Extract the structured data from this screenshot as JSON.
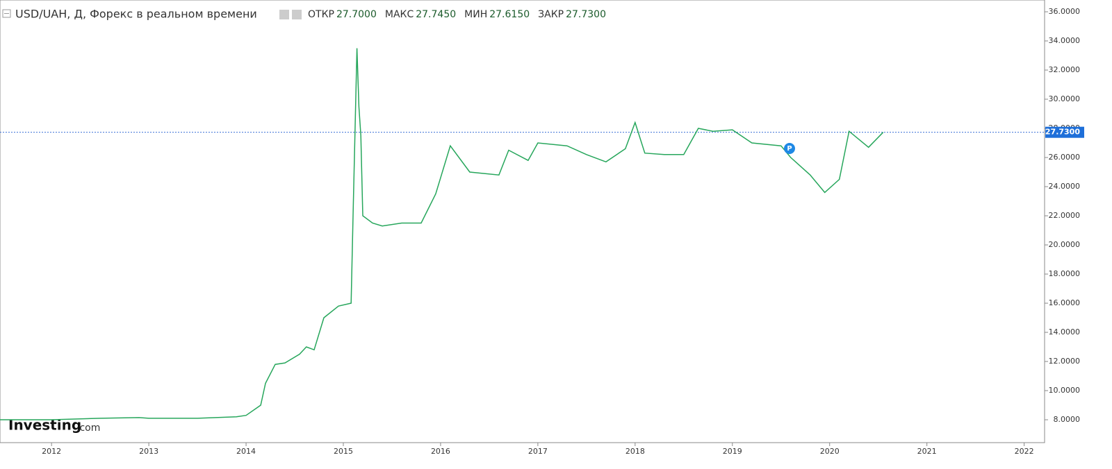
{
  "chart_data": {
    "type": "line",
    "title": "USD/UAH, Д, Форекс в реальном времени",
    "ohlc": [
      {
        "label": "ОТКР",
        "value": "27.7000"
      },
      {
        "label": "МАКС",
        "value": "27.7450"
      },
      {
        "label": "МИН",
        "value": "27.6150"
      },
      {
        "label": "ЗАКР",
        "value": "27.7300"
      }
    ],
    "last_price": {
      "value": 27.73,
      "label": "27.7300"
    },
    "annotation": "P",
    "logo": [
      "Investing",
      ".com"
    ],
    "color": "#26a65b",
    "x": [
      2011.47,
      2012.0,
      2012.5,
      2012.9,
      2013.0,
      2013.5,
      2013.9,
      2014.0,
      2014.15,
      2014.2,
      2014.3,
      2014.4,
      2014.55,
      2014.62,
      2014.7,
      2014.8,
      2014.95,
      2015.08,
      2015.1,
      2015.14,
      2015.16,
      2015.18,
      2015.2,
      2015.3,
      2015.4,
      2015.6,
      2015.8,
      2015.95,
      2016.1,
      2016.3,
      2016.6,
      2016.7,
      2016.9,
      2017.0,
      2017.3,
      2017.5,
      2017.7,
      2017.9,
      2018.0,
      2018.1,
      2018.3,
      2018.5,
      2018.65,
      2018.8,
      2019.0,
      2019.2,
      2019.5,
      2019.6,
      2019.8,
      2019.95,
      2020.1,
      2020.2,
      2020.4,
      2020.55
    ],
    "values": [
      8.0,
      8.0,
      8.1,
      8.15,
      8.1,
      8.1,
      8.2,
      8.3,
      9.0,
      10.5,
      11.8,
      11.9,
      12.5,
      13.0,
      12.8,
      15.0,
      15.8,
      16.0,
      22.0,
      33.5,
      29.5,
      27.5,
      22.0,
      21.5,
      21.3,
      21.5,
      21.5,
      23.5,
      26.8,
      25.0,
      24.8,
      26.5,
      25.8,
      27.0,
      26.8,
      26.2,
      25.7,
      26.6,
      28.4,
      26.3,
      26.2,
      26.2,
      28.0,
      27.8,
      27.9,
      27.0,
      26.8,
      26.0,
      24.8,
      23.6,
      24.5,
      27.8,
      26.7,
      27.73
    ],
    "xlim": [
      2011.47,
      2022.21
    ],
    "xticks": [
      2012,
      2013,
      2014,
      2015,
      2016,
      2017,
      2018,
      2019,
      2020,
      2021,
      2022
    ],
    "ylim": [
      6.43,
      36.81
    ],
    "yticks": [
      {
        "value": 8,
        "label": "8.0000"
      },
      {
        "value": 10,
        "label": "10.0000"
      },
      {
        "value": 12,
        "label": "12.0000"
      },
      {
        "value": 14,
        "label": "14.0000"
      },
      {
        "value": 16,
        "label": "16.0000"
      },
      {
        "value": 18,
        "label": "18.0000"
      },
      {
        "value": 20,
        "label": "20.0000"
      },
      {
        "value": 22,
        "label": "22.0000"
      },
      {
        "value": 24,
        "label": "24.0000"
      },
      {
        "value": 26,
        "label": "26.0000"
      },
      {
        "value": 28,
        "label": "28.0000"
      },
      {
        "value": 30,
        "label": "30.0000"
      },
      {
        "value": 32,
        "label": "32.0000"
      },
      {
        "value": 34,
        "label": "34.0000"
      },
      {
        "value": 36,
        "label": "36.0000"
      }
    ]
  }
}
